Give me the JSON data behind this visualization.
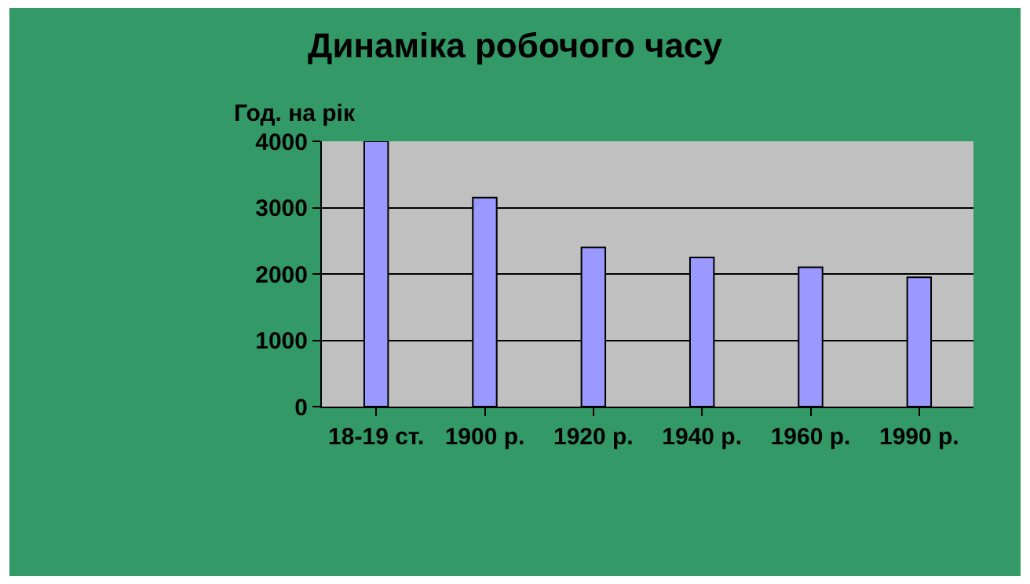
{
  "chart_data": {
    "type": "bar",
    "title": "Динаміка робочого часу",
    "ylabel": "Год. на рік",
    "categories": [
      "18-19 ст.",
      "1900 р.",
      "1920 р.",
      "1940 р.",
      "1960 р.",
      "1990 р."
    ],
    "values": [
      4000,
      3150,
      2400,
      2250,
      2100,
      1950
    ],
    "color": "#9999ff",
    "ylim": [
      0,
      4000
    ],
    "yticks": [
      0,
      1000,
      2000,
      3000,
      4000
    ],
    "grid": "y"
  }
}
